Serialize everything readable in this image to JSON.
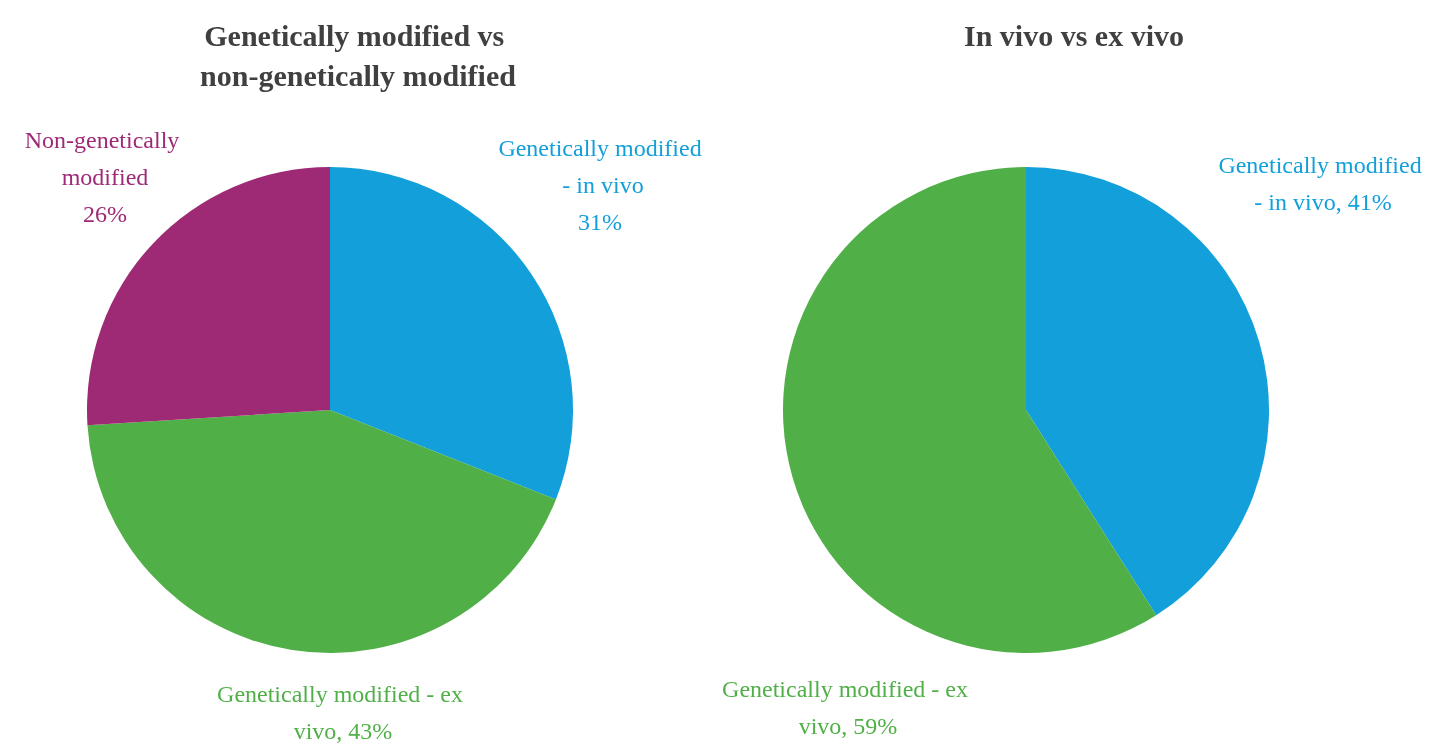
{
  "chart_data": [
    {
      "type": "pie",
      "title": "Genetically modified vs non-genetically modified",
      "categories": [
        "Genetically modified - in vivo",
        "Genetically modified - ex vivo",
        "Non-genetically modified"
      ],
      "values": [
        31,
        43,
        26
      ],
      "value_labels": [
        "31%",
        "43%",
        "26%"
      ],
      "colors": [
        "#129fda",
        "#50b047",
        "#9e2a76"
      ],
      "legend": false
    },
    {
      "type": "pie",
      "title": "In vivo vs ex vivo",
      "categories": [
        "Genetically modified - in vivo",
        "Genetically modified - ex vivo"
      ],
      "values": [
        41,
        59
      ],
      "value_labels": [
        "41%",
        "59%"
      ],
      "colors": [
        "#129fda",
        "#50b047"
      ],
      "legend": false
    }
  ]
}
